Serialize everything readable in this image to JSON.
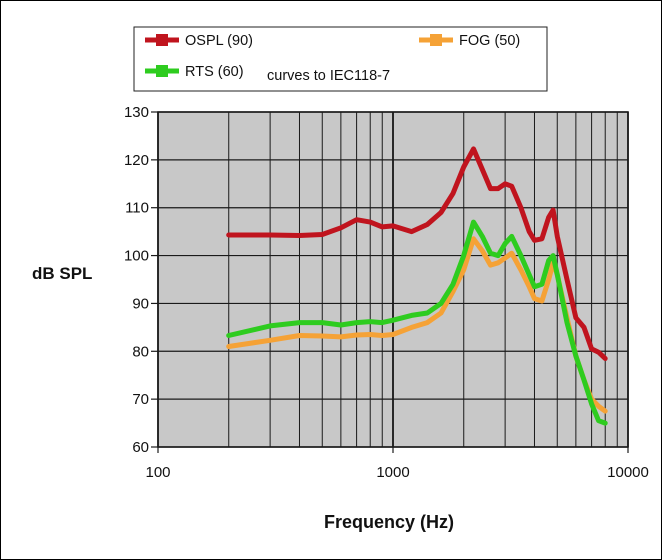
{
  "chart_data": {
    "type": "line",
    "title": "",
    "xlabel": "Frequency (Hz)",
    "ylabel": "dB SPL",
    "xscale": "log",
    "xlim": [
      100,
      10000
    ],
    "ylim": [
      60,
      130
    ],
    "grid": true,
    "legend_position": "top",
    "legend_note": "curves to IEC118-7",
    "x_ticks": [
      "100",
      "1000",
      "10000"
    ],
    "y_ticks": [
      "60",
      "70",
      "80",
      "90",
      "100",
      "110",
      "120",
      "130"
    ],
    "series": [
      {
        "name": "OSPL (90)",
        "color": "#c0141e",
        "points": [
          [
            200,
            104.3
          ],
          [
            300,
            104.3
          ],
          [
            400,
            104.2
          ],
          [
            500,
            104.4
          ],
          [
            600,
            105.8
          ],
          [
            700,
            107.5
          ],
          [
            800,
            107.0
          ],
          [
            900,
            106.0
          ],
          [
            1000,
            106.2
          ],
          [
            1200,
            105.0
          ],
          [
            1400,
            106.5
          ],
          [
            1600,
            109.0
          ],
          [
            1800,
            113.0
          ],
          [
            2000,
            118.5
          ],
          [
            2200,
            122.3
          ],
          [
            2400,
            118.0
          ],
          [
            2600,
            114.0
          ],
          [
            2800,
            114.0
          ],
          [
            3000,
            115.0
          ],
          [
            3200,
            114.5
          ],
          [
            3500,
            110.0
          ],
          [
            3800,
            105.0
          ],
          [
            4000,
            103.2
          ],
          [
            4300,
            103.5
          ],
          [
            4600,
            108.0
          ],
          [
            4800,
            109.5
          ],
          [
            5000,
            104.0
          ],
          [
            5500,
            95.0
          ],
          [
            6000,
            87.0
          ],
          [
            6500,
            85.0
          ],
          [
            7000,
            80.5
          ],
          [
            7500,
            79.8
          ],
          [
            8000,
            78.5
          ]
        ]
      },
      {
        "name": "FOG (50)",
        "color": "#f5a236",
        "points": [
          [
            200,
            81.0
          ],
          [
            300,
            82.3
          ],
          [
            400,
            83.3
          ],
          [
            500,
            83.2
          ],
          [
            600,
            83.0
          ],
          [
            700,
            83.4
          ],
          [
            800,
            83.5
          ],
          [
            900,
            83.3
          ],
          [
            1000,
            83.5
          ],
          [
            1200,
            85.0
          ],
          [
            1400,
            86.0
          ],
          [
            1600,
            88.0
          ],
          [
            1800,
            92.5
          ],
          [
            2000,
            97.0
          ],
          [
            2200,
            103.5
          ],
          [
            2400,
            101.0
          ],
          [
            2600,
            98.0
          ],
          [
            2800,
            98.5
          ],
          [
            3000,
            99.5
          ],
          [
            3200,
            100.5
          ],
          [
            3500,
            97.0
          ],
          [
            3800,
            93.5
          ],
          [
            4000,
            91.0
          ],
          [
            4300,
            90.5
          ],
          [
            4600,
            95.0
          ],
          [
            4800,
            98.5
          ],
          [
            5000,
            96.0
          ],
          [
            5500,
            87.0
          ],
          [
            6000,
            79.0
          ],
          [
            6500,
            74.0
          ],
          [
            7000,
            70.0
          ],
          [
            7500,
            68.5
          ],
          [
            8000,
            67.5
          ]
        ]
      },
      {
        "name": "RTS (60)",
        "color": "#2ecc1f",
        "points": [
          [
            200,
            83.3
          ],
          [
            300,
            85.3
          ],
          [
            400,
            86.0
          ],
          [
            500,
            86.0
          ],
          [
            600,
            85.5
          ],
          [
            700,
            86.0
          ],
          [
            800,
            86.2
          ],
          [
            900,
            86.0
          ],
          [
            1000,
            86.5
          ],
          [
            1200,
            87.5
          ],
          [
            1400,
            88.0
          ],
          [
            1600,
            90.0
          ],
          [
            1800,
            94.0
          ],
          [
            2000,
            100.0
          ],
          [
            2200,
            107.0
          ],
          [
            2400,
            104.0
          ],
          [
            2600,
            100.5
          ],
          [
            2800,
            100.0
          ],
          [
            3000,
            102.5
          ],
          [
            3200,
            104.0
          ],
          [
            3500,
            100.0
          ],
          [
            3800,
            96.0
          ],
          [
            4000,
            93.5
          ],
          [
            4300,
            94.0
          ],
          [
            4600,
            99.0
          ],
          [
            4800,
            100.0
          ],
          [
            5000,
            96.0
          ],
          [
            5500,
            86.0
          ],
          [
            6000,
            79.0
          ],
          [
            6500,
            74.0
          ],
          [
            7000,
            69.0
          ],
          [
            7500,
            65.5
          ],
          [
            8000,
            65.0
          ]
        ]
      }
    ]
  }
}
